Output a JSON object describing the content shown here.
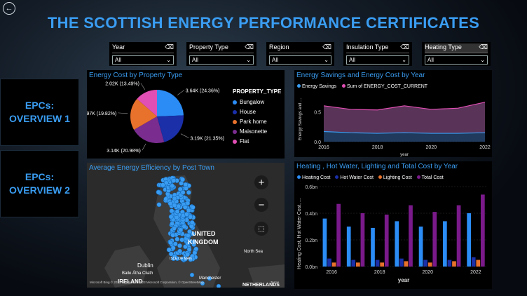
{
  "page": {
    "title": "THE SCOTTISH ENERGY PERFORMANCE CERTIFICATES",
    "back_icon": "back-arrow-icon"
  },
  "filters": [
    {
      "label": "Year",
      "value": "All"
    },
    {
      "label": "Property Type",
      "value": "All"
    },
    {
      "label": "Region",
      "value": "All"
    },
    {
      "label": "Insulation Type",
      "value": "All"
    },
    {
      "label": "Heating Type",
      "value": "All"
    }
  ],
  "nav": {
    "overview1": [
      "EPCs:",
      "OVERVIEW 1"
    ],
    "overview2": [
      "EPCs:",
      "OVERVIEW 2"
    ]
  },
  "pie_panel": {
    "title": "Energy Cost by Property Type",
    "legend_title": "PROPERTY_TYPE"
  },
  "savings_panel": {
    "title": "Energy Savings and Energy Cost by Year",
    "ylabel": "Energy Savings and ...",
    "xlabel": "year"
  },
  "map_panel": {
    "title": "Average Energy Efficiency by Post Town",
    "labels": [
      "UNITED",
      "KINGDOM",
      "North Sea",
      "Dublin",
      "Baile Átha Cliath",
      "IRELAND",
      "ISLE OF MAN",
      "Manchester",
      "NETHERLANDS"
    ],
    "attribution": "Microsoft Bing  © 2023 TomTom, © 2023 Microsoft Corporation, © OpenStreetMap",
    "attribution_tail": "Terms",
    "controls": {
      "zoom_in": "+",
      "zoom_out": "−"
    }
  },
  "cost_panel": {
    "title": "Heating , Hot Water, Lighting and Total Cost by Year",
    "ylabel": "Heating Cost, Hot Water Cost, ...",
    "xlabel": "year"
  },
  "colors": {
    "accent": "#3a9df2",
    "bungalow": "#2b8cf5",
    "house": "#1a2fa8",
    "park_home": "#e8722c",
    "maisonette": "#7a2d8f",
    "flat": "#e14fb4",
    "savings_fill": "#5a3358",
    "savings_line": "#3a9df2"
  },
  "chart_data": [
    {
      "type": "pie",
      "title": "Energy Cost by Property Type",
      "legend_title": "PROPERTY_TYPE",
      "legend": [
        "Bungalow",
        "House",
        "Park home",
        "Maisonette",
        "Flat"
      ],
      "slices": [
        {
          "name": "Bungalow",
          "value": 3.64,
          "label": "3.64K (24.36%)",
          "color": "#2b8cf5"
        },
        {
          "name": "House",
          "value": 3.19,
          "label": "3.19K (21.35%)",
          "color": "#1a2fa8"
        },
        {
          "name": "Maisonette",
          "value": 3.14,
          "label": "3.14K (20.98%)",
          "color": "#7a2d8f"
        },
        {
          "name": "Park home",
          "value": 2.97,
          "label": "2.97K (19.82%)",
          "color": "#e8722c"
        },
        {
          "name": "Flat",
          "value": 2.02,
          "label": "2.02K (13.49%)",
          "color": "#e14fb4"
        }
      ]
    },
    {
      "type": "area",
      "title": "Energy Savings and Energy Cost by Year",
      "legend": [
        "Energy Savings",
        "Sum of ENERGY_COST_CURRENT"
      ],
      "xlabel": "year",
      "ylabel": "Energy Savings and ...",
      "x": [
        2016,
        2017,
        2018,
        2019,
        2020,
        2021,
        2022
      ],
      "x_ticks": [
        2016,
        2018,
        2020,
        2022
      ],
      "ylim": [
        0,
        0.75
      ],
      "y_ticks": [
        0.0,
        0.5
      ],
      "series": [
        {
          "name": "Energy Savings",
          "values": [
            0.17,
            0.15,
            0.14,
            0.15,
            0.14,
            0.14,
            0.15
          ]
        },
        {
          "name": "Sum of ENERGY_COST_CURRENT",
          "values": [
            0.6,
            0.54,
            0.53,
            0.6,
            0.54,
            0.56,
            0.66
          ]
        }
      ]
    },
    {
      "type": "bar",
      "title": "Heating , Hot Water, Lighting and Total Cost by Year",
      "xlabel": "year",
      "ylabel": "Heating Cost, Hot Water Cost, ...",
      "categories": [
        "2016",
        "2017",
        "2018",
        "2019",
        "2020",
        "2021",
        "2022"
      ],
      "x_ticks": [
        "2016",
        "2018",
        "2020",
        "2022"
      ],
      "ylim": [
        0,
        0.6
      ],
      "y_ticks": [
        "0.0bn",
        "0.2bn",
        "0.4bn",
        "0.6bn"
      ],
      "series": [
        {
          "name": "Heating Cost",
          "color": "#2b8cf5",
          "values": [
            0.36,
            0.3,
            0.29,
            0.34,
            0.3,
            0.34,
            0.4
          ]
        },
        {
          "name": "Hot Water Cost",
          "color": "#1a2fa8",
          "values": [
            0.06,
            0.05,
            0.05,
            0.06,
            0.05,
            0.05,
            0.07
          ]
        },
        {
          "name": "Lighting Cost",
          "color": "#e8722c",
          "values": [
            0.03,
            0.03,
            0.03,
            0.04,
            0.03,
            0.04,
            0.05
          ]
        },
        {
          "name": "Total Cost",
          "color": "#7a1a8a",
          "values": [
            0.47,
            0.4,
            0.39,
            0.46,
            0.41,
            0.46,
            0.54
          ]
        }
      ]
    }
  ]
}
